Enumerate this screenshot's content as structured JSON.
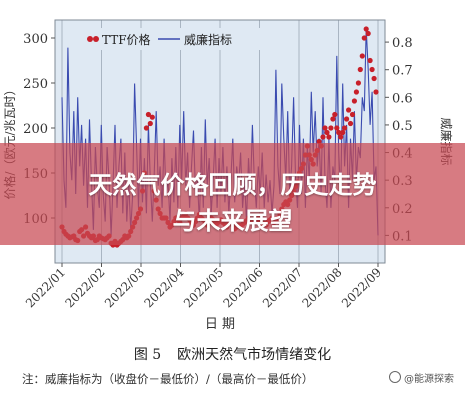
{
  "chart_data": {
    "type": "line",
    "x_tick_labels": [
      "2022/01",
      "2022/02",
      "2022/03",
      "2022/04",
      "2022/05",
      "2022/06",
      "2022/07",
      "2022/08",
      "2022/09"
    ],
    "xlabel": "日 期",
    "ylabel_left": "价格/（欧元/兆瓦时）",
    "ylabel_right": "威廉指标",
    "ylim_left": [
      50,
      320
    ],
    "ylim_right": [
      0,
      0.88
    ],
    "yticks_left": [
      100,
      150,
      200,
      250,
      300
    ],
    "yticks_right": [
      0.1,
      0.2,
      0.3,
      0.4,
      0.5,
      0.6,
      0.7,
      0.8
    ],
    "legend_position": "top-left",
    "series": [
      {
        "name": "TTF价格",
        "axis": "left",
        "style": "dots",
        "color": "#c8202a",
        "values": [
          90,
          85,
          82,
          80,
          78,
          79,
          80,
          76,
          75,
          85,
          87,
          80,
          90,
          83,
          80,
          78,
          80,
          75,
          76,
          80,
          78,
          77,
          76,
          78,
          80,
          72,
          70,
          74,
          70,
          72,
          74,
          76,
          80,
          78,
          80,
          85,
          90,
          95,
          100,
          105,
          110,
          130,
          150,
          200,
          215,
          205,
          212,
          130,
          120,
          110,
          105,
          100,
          100,
          100,
          95,
          90,
          92,
          96,
          100,
          98,
          95,
          100,
          102,
          105,
          100,
          98,
          95,
          92,
          96,
          100,
          104,
          100,
          98,
          95,
          92,
          95,
          100,
          98,
          96,
          94,
          96,
          98,
          95,
          93,
          90,
          95,
          96,
          92,
          88,
          90,
          92,
          90,
          93,
          95,
          97,
          100,
          98,
          96,
          95,
          97,
          100,
          95,
          93,
          94,
          92,
          96,
          98,
          100,
          95,
          97,
          100,
          105,
          110,
          115,
          118,
          115,
          120,
          125,
          130,
          135,
          140,
          150,
          155,
          160,
          170,
          180,
          170,
          165,
          160,
          170,
          175,
          185,
          180,
          190,
          200,
          195,
          190,
          200,
          210,
          215,
          200,
          195,
          190,
          195,
          200,
          210,
          220,
          205,
          215,
          230,
          240,
          250,
          265,
          280,
          300,
          310,
          305,
          275,
          265,
          255,
          240
        ]
      },
      {
        "name": "威廉指标",
        "axis": "right",
        "style": "line",
        "color": "#3a4bb0",
        "values": [
          0.6,
          0.3,
          0.2,
          0.78,
          0.4,
          0.3,
          0.55,
          0.25,
          0.6,
          0.35,
          0.5,
          0.28,
          0.45,
          0.2,
          0.52,
          0.3,
          0.12,
          0.42,
          0.28,
          0.2,
          0.5,
          0.25,
          0.15,
          0.42,
          0.3,
          0.1,
          0.28,
          0.5,
          0.2,
          0.35,
          0.45,
          0.18,
          0.4,
          0.15,
          0.3,
          0.12,
          0.25,
          0.65,
          0.42,
          0.2,
          0.45,
          0.22,
          0.38,
          0.18,
          0.5,
          0.3,
          0.15,
          0.32,
          0.55,
          0.28,
          0.35,
          0.2,
          0.45,
          0.25,
          0.3,
          0.15,
          0.38,
          0.22,
          0.42,
          0.2,
          0.5,
          0.3,
          0.55,
          0.28,
          0.4,
          0.2,
          0.35,
          0.48,
          0.25,
          0.3,
          0.15,
          0.42,
          0.2,
          0.52,
          0.28,
          0.38,
          0.18,
          0.3,
          0.45,
          0.2,
          0.38,
          0.25,
          0.42,
          0.22,
          0.35,
          0.18,
          0.3,
          0.45,
          0.22,
          0.35,
          0.28,
          0.4,
          0.2,
          0.3,
          0.15,
          0.38,
          0.25,
          0.5,
          0.3,
          0.2,
          0.35,
          0.25,
          0.4,
          0.2,
          0.32,
          0.22,
          0.3,
          0.18,
          0.28,
          0.7,
          0.35,
          0.25,
          0.65,
          0.45,
          0.3,
          0.55,
          0.25,
          0.35,
          0.6,
          0.3,
          0.2,
          0.5,
          0.25,
          0.45,
          0.2,
          0.42,
          0.3,
          0.62,
          0.4,
          0.55,
          0.35,
          0.45,
          0.25,
          0.6,
          0.3,
          0.2,
          0.45,
          0.2,
          0.35,
          0.3,
          0.75,
          0.4,
          0.25,
          0.65,
          0.35,
          0.5,
          0.2,
          0.45,
          0.3,
          0.55,
          0.3,
          0.42,
          0.38,
          0.6,
          0.55,
          0.85,
          0.7,
          0.5,
          0.62,
          0.3,
          0.35,
          0.1
        ]
      }
    ]
  },
  "overlay": {
    "title_line1": "天然气价格回顾，历史走势",
    "title_line2": "与未来展望"
  },
  "caption": {
    "figure_number": "图 5",
    "title": "欧洲天然气市场情绪变化",
    "note": "注：威廉指标为（收盘价－最低价）/（最高价－最低价）"
  },
  "watermark": "@能源探索",
  "colors": {
    "price": "#c8202a",
    "williams": "#3a4bb0",
    "plot_background": "#dfe9f3",
    "banner": "#c84852"
  }
}
